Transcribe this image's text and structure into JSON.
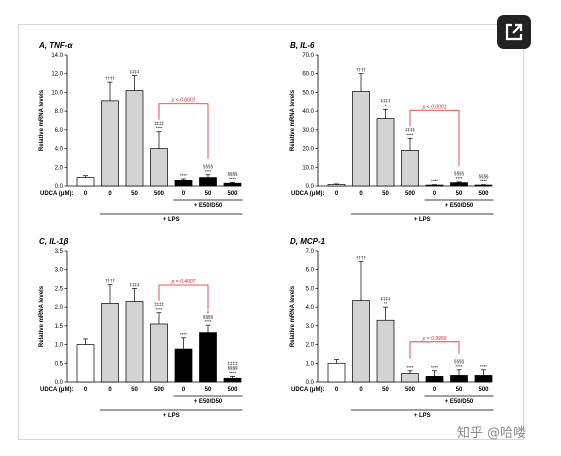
{
  "watermark": "知乎 @哈喽",
  "icons": {
    "expand": "open-in-new-icon"
  },
  "colors": {
    "white_bar": "#ffffff",
    "lps_bar": "#d3d3d3",
    "ed_bar": "#000000",
    "pvalue": "#e02020"
  },
  "chart_data": [
    {
      "type": "bar",
      "title": "A, TNF-α",
      "ylabel": "Relative mRNA levels",
      "ylim": [
        0,
        14
      ],
      "yticks": [
        "0.0",
        "2.0",
        "4.0",
        "6.0",
        "8.0",
        "10.0",
        "12.0",
        "14.0"
      ],
      "x_axis_label": "UDCA (μM):",
      "categories": [
        "0",
        "0",
        "50",
        "500",
        "0",
        "50",
        "500"
      ],
      "values": [
        0.9,
        9.1,
        10.2,
        4.0,
        0.6,
        0.9,
        0.3
      ],
      "errors": [
        0.2,
        2.0,
        1.6,
        1.8,
        0.15,
        0.3,
        0.1
      ],
      "annotations": [
        "",
        "††††",
        "‡‡‡‡",
        "‡‡‡‡\n****",
        "****",
        "§§§§\n****",
        "§§§§\n****"
      ],
      "pvalue": "p < 0.0001",
      "group_labels": [
        "+ E50/D50",
        "+ LPS"
      ]
    },
    {
      "type": "bar",
      "title": "B, IL-6",
      "ylabel": "Relative mRNA levels",
      "ylim": [
        0,
        70
      ],
      "yticks": [
        "0.0",
        "10.0",
        "20.0",
        "30.0",
        "40.0",
        "50.0",
        "60.0",
        "70.0"
      ],
      "x_axis_label": "UDCA (μM):",
      "categories": [
        "0",
        "0",
        "50",
        "500",
        "0",
        "50",
        "500"
      ],
      "values": [
        0.8,
        50.5,
        36.0,
        19.0,
        0.5,
        1.8,
        0.5
      ],
      "errors": [
        0.3,
        9.5,
        5.0,
        6.5,
        0.2,
        0.4,
        0.2
      ],
      "annotations": [
        "",
        "††††",
        "‡‡‡‡\n*",
        "‡‡‡‡\n****",
        "****",
        "§§§§\n****",
        "§§§§\n****"
      ],
      "pvalue": "p < 0.0001",
      "group_labels": [
        "+ E50/D50",
        "+ LPS"
      ]
    },
    {
      "type": "bar",
      "title": "C, IL-1β",
      "ylabel": "Relative mRNA levels",
      "ylim": [
        0,
        3.5
      ],
      "yticks": [
        "0.0",
        "0.5",
        "1.0",
        "1.5",
        "2.0",
        "2.5",
        "3.0",
        "3.5"
      ],
      "x_axis_label": "UDCA (μM):",
      "categories": [
        "0",
        "0",
        "50",
        "500",
        "0",
        "50",
        "500"
      ],
      "values": [
        1.0,
        2.1,
        2.15,
        1.55,
        0.88,
        1.32,
        0.1
      ],
      "errors": [
        0.15,
        0.5,
        0.35,
        0.3,
        0.3,
        0.2,
        0.05
      ],
      "annotations": [
        "",
        "††††",
        "‡‡‡‡",
        "‡‡‡‡\n****",
        "****",
        "‡\n§§§§\n****",
        "‡‡‡‡\n§§§§\n****"
      ],
      "pvalue": "p = 0.4007",
      "group_labels": [
        "+ E50/D50",
        "+ LPS"
      ]
    },
    {
      "type": "bar",
      "title": "D, MCP-1",
      "ylabel": "Relative mRNA levels",
      "ylim": [
        0,
        7
      ],
      "yticks": [
        "0.0",
        "1.0",
        "2.0",
        "3.0",
        "4.0",
        "5.0",
        "6.0",
        "7.0"
      ],
      "x_axis_label": "UDCA (μM):",
      "categories": [
        "0",
        "0",
        "50",
        "500",
        "0",
        "50",
        "500"
      ],
      "values": [
        1.0,
        4.35,
        3.3,
        0.45,
        0.3,
        0.35,
        0.35
      ],
      "errors": [
        0.2,
        2.1,
        0.7,
        0.15,
        0.3,
        0.3,
        0.3
      ],
      "annotations": [
        "",
        "††††",
        "‡‡‡‡\n**",
        "****",
        "****",
        "§§§§\n****",
        "****"
      ],
      "pvalue": "p = 0.9956",
      "group_labels": [
        "+ E50/D50",
        "+ LPS"
      ]
    }
  ]
}
